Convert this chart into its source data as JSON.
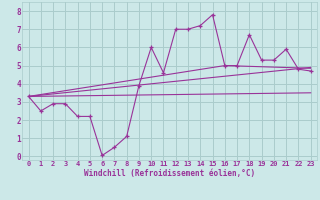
{
  "xlabel": "Windchill (Refroidissement éolien,°C)",
  "bg_color": "#cce8e8",
  "grid_color": "#aacccc",
  "line_color": "#993399",
  "xlim": [
    -0.5,
    23.5
  ],
  "ylim": [
    -0.2,
    8.5
  ],
  "xticks": [
    0,
    1,
    2,
    3,
    4,
    5,
    6,
    7,
    8,
    9,
    10,
    11,
    12,
    13,
    14,
    15,
    16,
    17,
    18,
    19,
    20,
    21,
    22,
    23
  ],
  "yticks": [
    0,
    1,
    2,
    3,
    4,
    5,
    6,
    7,
    8
  ],
  "main_x": [
    0,
    1,
    2,
    3,
    4,
    5,
    6,
    7,
    8,
    9,
    10,
    11,
    12,
    13,
    14,
    15,
    16,
    17,
    18,
    19,
    20,
    21,
    22,
    23
  ],
  "main_y": [
    3.3,
    2.5,
    2.9,
    2.9,
    2.2,
    2.2,
    0.05,
    0.5,
    1.1,
    3.9,
    6.0,
    4.6,
    7.0,
    7.0,
    7.2,
    7.8,
    5.0,
    5.0,
    6.7,
    5.3,
    5.3,
    5.9,
    4.8,
    4.7
  ],
  "line1_x": [
    0,
    23
  ],
  "line1_y": [
    3.3,
    4.9
  ],
  "line2_x": [
    0,
    23
  ],
  "line2_y": [
    3.3,
    3.5
  ],
  "line3_x": [
    0,
    16,
    23
  ],
  "line3_y": [
    3.3,
    5.0,
    4.85
  ]
}
